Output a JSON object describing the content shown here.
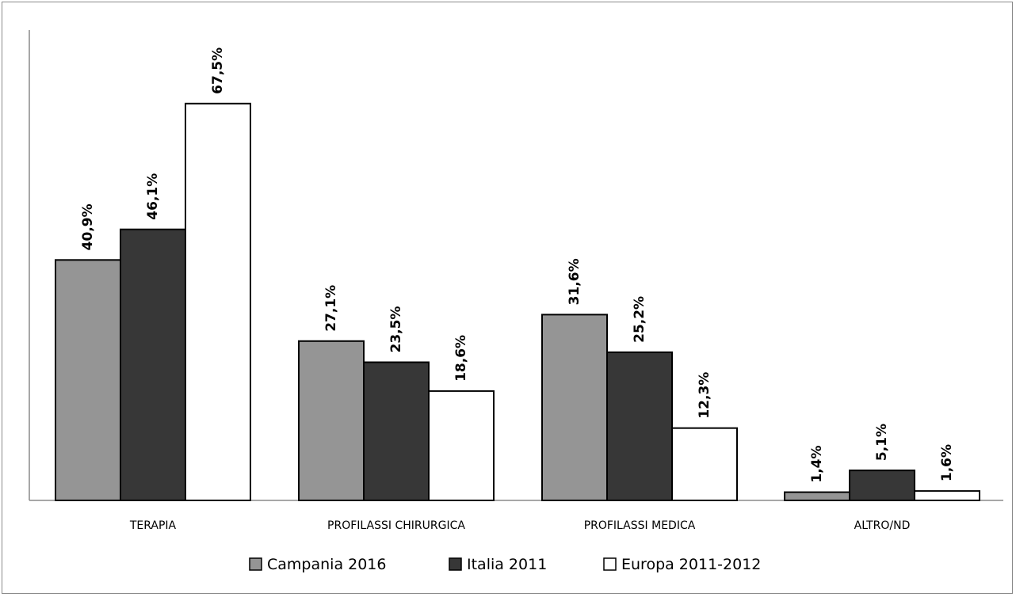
{
  "chart_data": {
    "type": "bar",
    "categories": [
      "TERAPIA",
      "PROFILASSI CHIRURGICA",
      "PROFILASSI MEDICA",
      "ALTRO/ND"
    ],
    "series": [
      {
        "name": "Campania 2016",
        "color": "#959595",
        "values": [
          40.9,
          27.1,
          31.6,
          1.4
        ],
        "labels": [
          "40,9%",
          "27,1%",
          "31,6%",
          "1,4%"
        ]
      },
      {
        "name": "Italia 2011",
        "color": "#373737",
        "values": [
          46.1,
          23.5,
          25.2,
          5.1
        ],
        "labels": [
          "46,1%",
          "23,5%",
          "25,2%",
          "5,1%"
        ]
      },
      {
        "name": "Europa 2011-2012",
        "color": "#ffffff",
        "values": [
          67.5,
          18.6,
          12.3,
          1.6
        ],
        "labels": [
          "67,5%",
          "18,6%",
          "12,3%",
          "1,6%"
        ]
      }
    ],
    "title": "",
    "xlabel": "",
    "ylabel": "",
    "ylim": [
      0,
      80
    ],
    "grid": false,
    "legend_position": "bottom",
    "data_labels": "rotated-vertical"
  }
}
